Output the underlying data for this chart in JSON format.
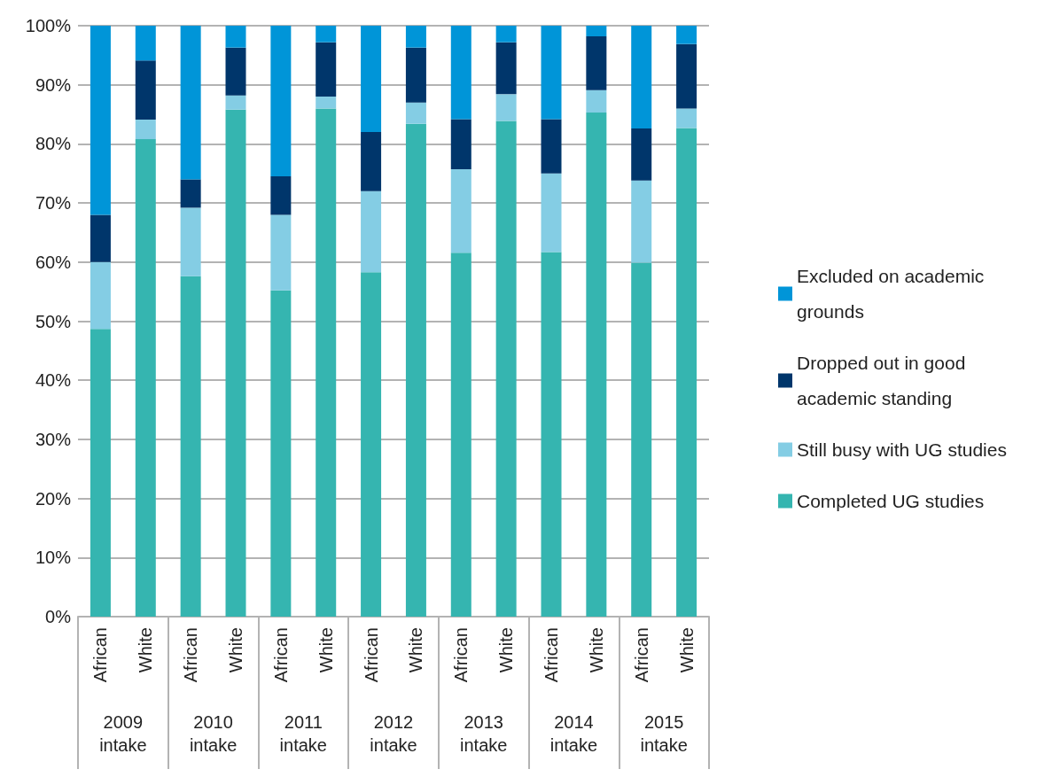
{
  "chart_data": {
    "type": "bar",
    "stacked": true,
    "categories": [
      "African",
      "White",
      "African",
      "White",
      "African",
      "White",
      "African",
      "White",
      "African",
      "White",
      "African",
      "White",
      "African",
      "White"
    ],
    "annotations": [
      "2009\nintake",
      "2010\nintake",
      "2011\nintake",
      "2012\nintake",
      "2013\nintake",
      "2014\nintake",
      "2015\nintake"
    ],
    "series": [
      {
        "name": "Completed UG studies",
        "color": "#35b5b0",
        "values": [
          48.7,
          80.8,
          57.6,
          85.8,
          55.2,
          86,
          58.3,
          83.4,
          61.6,
          83.9,
          61.7,
          85.3,
          59.9,
          82.7
        ]
      },
      {
        "name": "Still busy with UG studies",
        "color": "#84cde4",
        "values": [
          11.3,
          3.3,
          11.6,
          2.4,
          12.8,
          2,
          13.7,
          3.6,
          14.1,
          4.5,
          13.3,
          3.8,
          13.9,
          3.3
        ]
      },
      {
        "name": "Dropped out in good academic standing",
        "color": "#00366b",
        "values": [
          8,
          10,
          4.8,
          8.1,
          6.5,
          9.2,
          10,
          9.3,
          8.5,
          8.8,
          9.2,
          9.1,
          8.8,
          10.9
        ]
      },
      {
        "name": "Excluded on academic grounds",
        "color": "#0095d8",
        "values": [
          32,
          5.9,
          26,
          3.7,
          25.5,
          2.8,
          18,
          3.7,
          15.8,
          2.8,
          15.8,
          1.8,
          17.4,
          3.1
        ]
      }
    ],
    "ylim": [
      0,
      100
    ],
    "yticks": [
      {
        "value": 0,
        "label": "0%"
      },
      {
        "value": 10,
        "label": "10%"
      },
      {
        "value": 20,
        "label": "20%"
      },
      {
        "value": 30,
        "label": "30%"
      },
      {
        "value": 40,
        "label": "40%"
      },
      {
        "value": 50,
        "label": "50%"
      },
      {
        "value": 60,
        "label": "60%"
      },
      {
        "value": 70,
        "label": "70%"
      },
      {
        "value": 80,
        "label": "80%"
      },
      {
        "value": 90,
        "label": "90%"
      },
      {
        "value": 100,
        "label": "100%"
      }
    ],
    "grid": "y",
    "legend": "right"
  }
}
